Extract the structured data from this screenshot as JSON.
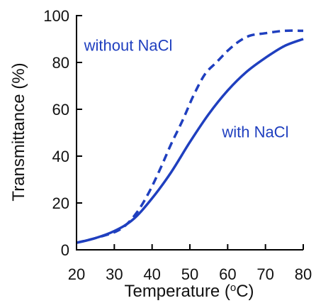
{
  "chart_data": {
    "type": "line",
    "xlabel": "Temperature (",
    "xlabel_sup": "o",
    "xlabel_unit": "C)",
    "ylabel": "Transmittance (%)",
    "xlim": [
      20,
      80
    ],
    "ylim": [
      0,
      100
    ],
    "x_ticks": [
      20,
      30,
      40,
      50,
      60,
      70,
      80
    ],
    "y_ticks": [
      0,
      20,
      40,
      60,
      80,
      100
    ],
    "grid": false,
    "legend": "none",
    "line_color": "#1f3fbf",
    "series": [
      {
        "style": "dashed",
        "label": "without NaCl",
        "x": [
          20,
          25,
          30,
          33,
          36,
          39,
          42,
          45,
          48,
          51,
          54,
          57,
          60,
          63,
          66,
          70,
          75,
          80
        ],
        "y": [
          3,
          5,
          7.5,
          10.5,
          16,
          24,
          34,
          45,
          55,
          66,
          75,
          80,
          85,
          89,
          91.5,
          92.5,
          93.5,
          93.5
        ]
      },
      {
        "style": "solid",
        "label": "with NaCl",
        "x": [
          20,
          25,
          30,
          35,
          40,
          45,
          50,
          55,
          60,
          65,
          70,
          75,
          80
        ],
        "y": [
          3,
          5,
          8,
          13,
          22,
          33,
          46,
          58,
          68,
          76,
          82,
          87,
          90
        ]
      }
    ],
    "annotations": [
      {
        "text": "without NaCl",
        "x": 22,
        "y": 85
      },
      {
        "text": "with NaCl",
        "x": 58.5,
        "y": 48
      }
    ]
  }
}
